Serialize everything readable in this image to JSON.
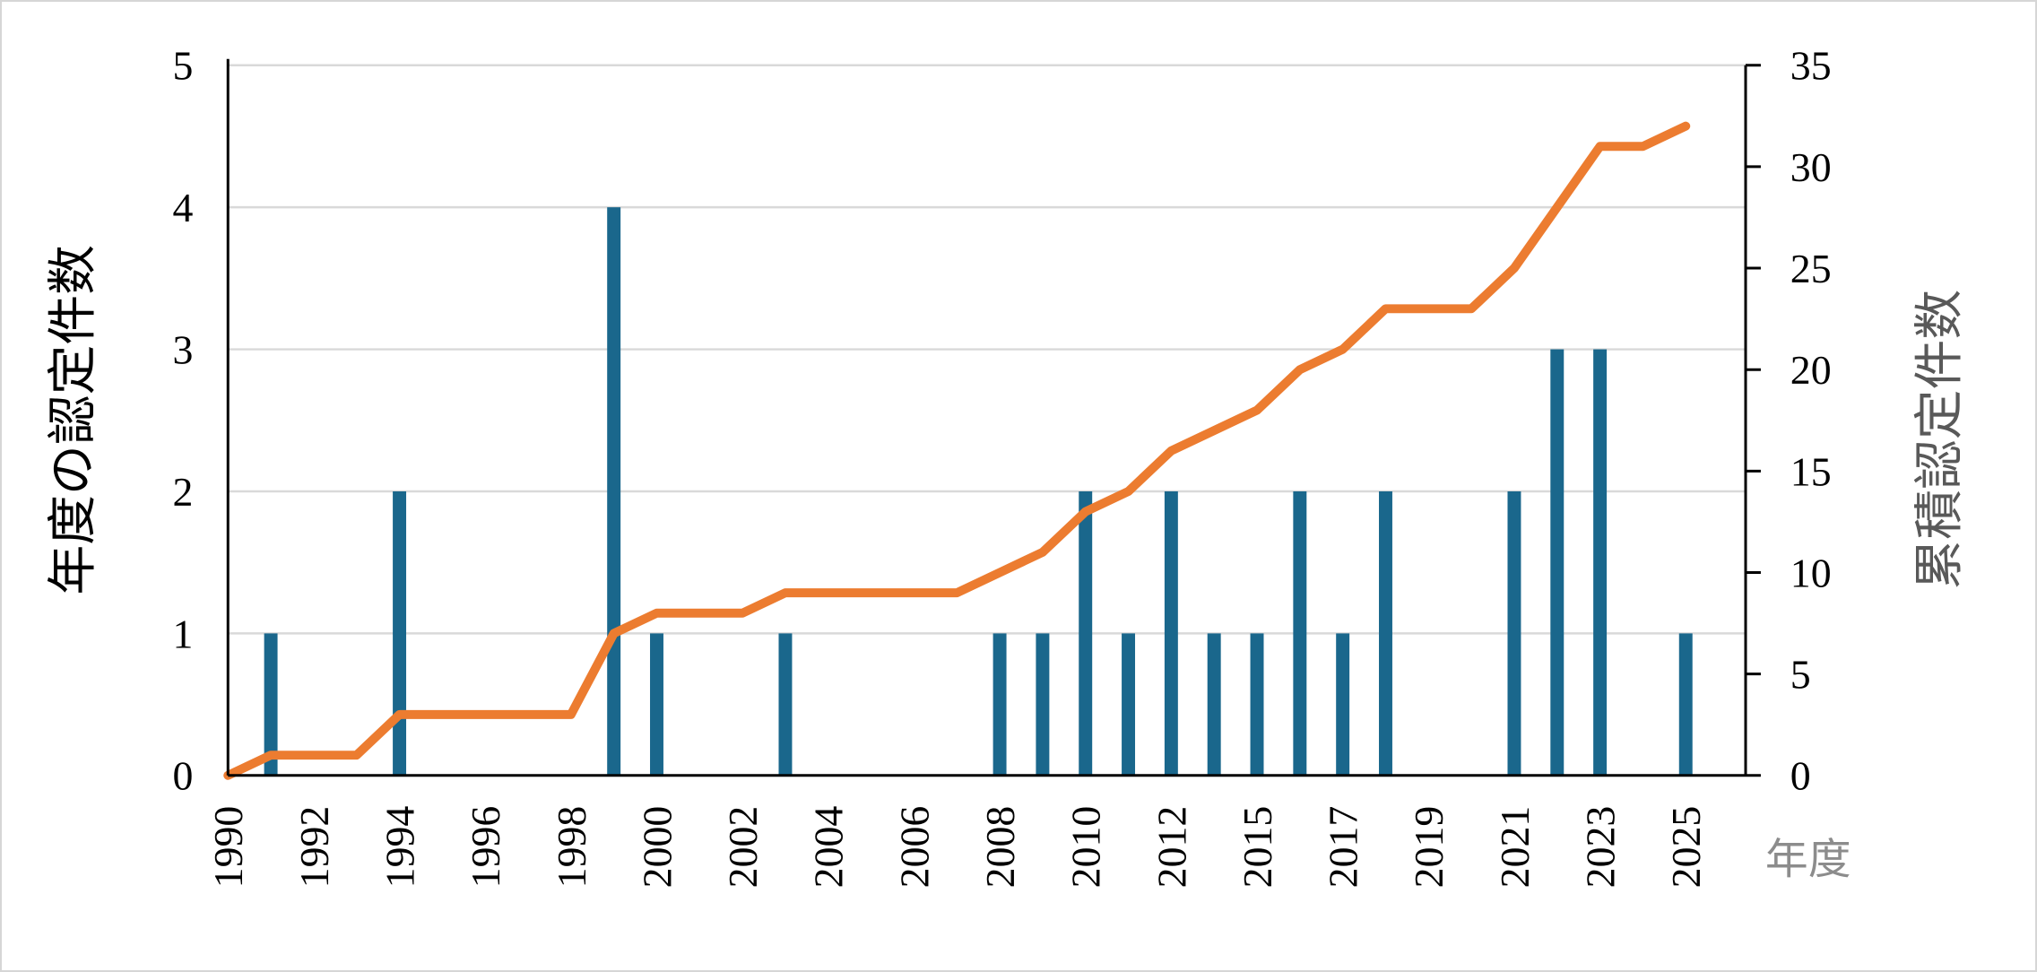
{
  "labels": {
    "left_axis_title": "年度の認定件数",
    "right_axis_title": "累積認定件数",
    "x_axis_unit": "年度"
  },
  "colors": {
    "bar": "#1A678C",
    "line": "#EC7C30",
    "gridline": "#D9D9D9",
    "axis": "#000000",
    "tick_label": "#000000",
    "left_title": "#000000",
    "right_title": "#595959",
    "unit_label": "#8C8C8C",
    "background": "#FFFFFF",
    "border": "#D6D6D6"
  },
  "chart_data": {
    "type": "bar",
    "subtype": "combo-bar-line-dual-axis",
    "title": "",
    "xlabel": "年度",
    "grid": true,
    "legend": "none",
    "categories": [
      "1990",
      "1991",
      "1992",
      "1993",
      "1994",
      "1995",
      "1996",
      "1997",
      "1998",
      "1999",
      "2000",
      "2001",
      "2002",
      "2003",
      "2004",
      "2005",
      "2006",
      "2007",
      "2008",
      "2009",
      "2010",
      "2011",
      "2012",
      "2013",
      "2015",
      "2016",
      "2017",
      "2018",
      "2019",
      "2020",
      "2021",
      "2022",
      "2023",
      "2024",
      "2025"
    ],
    "visible_x_tick_labels": [
      "1990",
      "1992",
      "1994",
      "1996",
      "1998",
      "2000",
      "2002",
      "2004",
      "2006",
      "2008",
      "2010",
      "2012",
      "2015",
      "2017",
      "2019",
      "2021",
      "2023",
      "2025"
    ],
    "x_tick_label_every": 2,
    "series": [
      {
        "name": "年度の認定件数",
        "type": "bar",
        "axis": "left",
        "values": [
          0,
          1,
          0,
          0,
          2,
          0,
          0,
          0,
          0,
          4,
          1,
          0,
          0,
          1,
          0,
          0,
          0,
          0,
          1,
          1,
          2,
          1,
          2,
          1,
          1,
          2,
          1,
          2,
          0,
          0,
          2,
          3,
          3,
          0,
          1
        ]
      },
      {
        "name": "累積認定件数",
        "type": "line",
        "axis": "right",
        "values": [
          0,
          1,
          1,
          1,
          3,
          3,
          3,
          3,
          3,
          7,
          8,
          8,
          8,
          9,
          9,
          9,
          9,
          9,
          10,
          11,
          13,
          14,
          16,
          17,
          18,
          20,
          21,
          23,
          23,
          23,
          25,
          28,
          31,
          31,
          32
        ]
      }
    ],
    "left_axis": {
      "title": "年度の認定件数",
      "min": 0,
      "max": 5,
      "tick_step": 1,
      "tick_labels": [
        "0",
        "1",
        "2",
        "3",
        "4",
        "5"
      ]
    },
    "right_axis": {
      "title": "累積認定件数",
      "min": 0,
      "max": 35,
      "tick_step": 5,
      "tick_labels": [
        "0",
        "5",
        "10",
        "15",
        "20",
        "25",
        "30",
        "35"
      ]
    }
  }
}
